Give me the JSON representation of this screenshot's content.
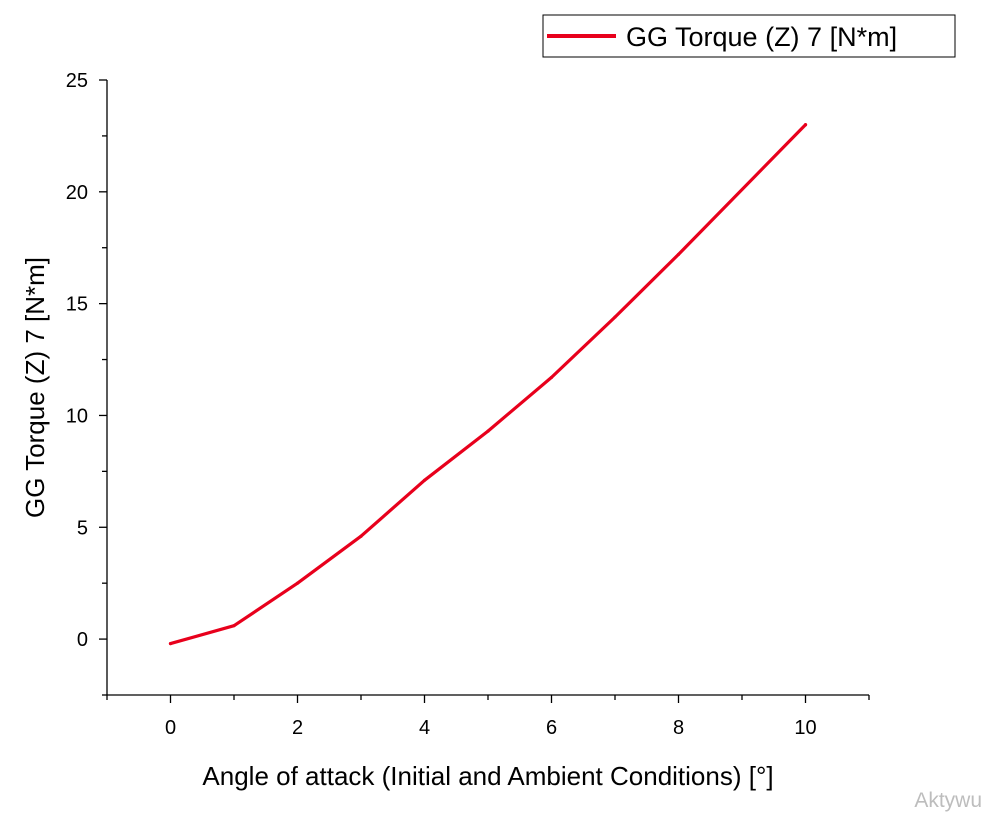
{
  "chart_data": {
    "type": "line",
    "title": "",
    "xlabel": "Angle of attack (Initial and Ambient Conditions) [°]",
    "ylabel": "GG Torque (Z) 7 [N*m]",
    "xlim": [
      -1,
      11
    ],
    "ylim": [
      -2.5,
      25
    ],
    "x_ticks": [
      0,
      2,
      4,
      6,
      8,
      10
    ],
    "y_ticks": [
      0,
      5,
      10,
      15,
      20,
      25
    ],
    "x_minor_step": 1,
    "y_minor_step": 2.5,
    "grid": false,
    "legend_position": "top-right",
    "series": [
      {
        "name": "GG Torque (Z) 7 [N*m]",
        "color": "#e8001c",
        "x": [
          0,
          1,
          2,
          3,
          4,
          5,
          6,
          7,
          8,
          10
        ],
        "y": [
          -0.2,
          0.6,
          2.5,
          4.6,
          7.1,
          9.3,
          11.7,
          14.4,
          17.2,
          23.0
        ]
      }
    ]
  },
  "watermark": "Aktywu"
}
